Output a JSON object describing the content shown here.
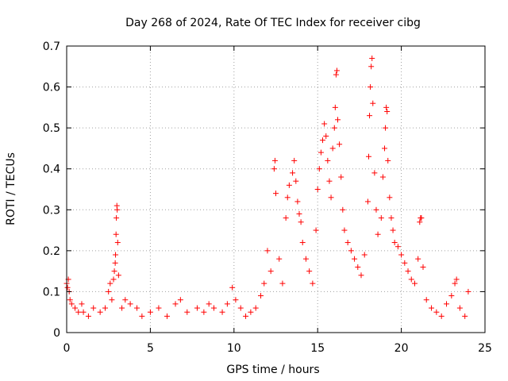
{
  "chart_data": {
    "type": "scatter",
    "title": "Day 268 of 2024, Rate Of TEC Index for receiver cibg",
    "xlabel": "GPS time / hours",
    "ylabel": "ROTI / TECUs",
    "xlim": [
      0,
      25
    ],
    "ylim": [
      0,
      0.7
    ],
    "x_ticks": [
      "0",
      "5",
      "10",
      "15",
      "20",
      "25"
    ],
    "y_ticks": [
      "0",
      "0.1",
      "0.2",
      "0.3",
      "0.4",
      "0.5",
      "0.6",
      "0.7"
    ],
    "grid": true,
    "marker": "+",
    "color": "#ff0000",
    "series": [
      {
        "name": "ROTI",
        "points": [
          [
            0.0,
            0.12
          ],
          [
            0.05,
            0.11
          ],
          [
            0.1,
            0.13
          ],
          [
            0.15,
            0.1
          ],
          [
            0.2,
            0.08
          ],
          [
            0.3,
            0.07
          ],
          [
            0.5,
            0.06
          ],
          [
            0.7,
            0.05
          ],
          [
            0.9,
            0.07
          ],
          [
            1.0,
            0.05
          ],
          [
            1.3,
            0.04
          ],
          [
            1.6,
            0.06
          ],
          [
            2.0,
            0.05
          ],
          [
            2.3,
            0.06
          ],
          [
            2.5,
            0.1
          ],
          [
            2.6,
            0.12
          ],
          [
            2.7,
            0.08
          ],
          [
            2.8,
            0.13
          ],
          [
            2.85,
            0.15
          ],
          [
            2.9,
            0.17
          ],
          [
            2.92,
            0.19
          ],
          [
            2.95,
            0.24
          ],
          [
            2.97,
            0.28
          ],
          [
            3.0,
            0.31
          ],
          [
            3.02,
            0.3
          ],
          [
            3.05,
            0.22
          ],
          [
            3.1,
            0.14
          ],
          [
            3.3,
            0.06
          ],
          [
            3.5,
            0.08
          ],
          [
            3.8,
            0.07
          ],
          [
            4.2,
            0.06
          ],
          [
            4.5,
            0.04
          ],
          [
            5.0,
            0.05
          ],
          [
            5.5,
            0.06
          ],
          [
            6.0,
            0.04
          ],
          [
            6.5,
            0.07
          ],
          [
            6.8,
            0.08
          ],
          [
            7.2,
            0.05
          ],
          [
            7.8,
            0.06
          ],
          [
            8.2,
            0.05
          ],
          [
            8.5,
            0.07
          ],
          [
            8.8,
            0.06
          ],
          [
            9.3,
            0.05
          ],
          [
            9.6,
            0.07
          ],
          [
            9.9,
            0.11
          ],
          [
            10.1,
            0.08
          ],
          [
            10.4,
            0.06
          ],
          [
            10.7,
            0.04
          ],
          [
            11.0,
            0.05
          ],
          [
            11.3,
            0.06
          ],
          [
            11.6,
            0.09
          ],
          [
            11.8,
            0.12
          ],
          [
            12.0,
            0.2
          ],
          [
            12.2,
            0.15
          ],
          [
            12.4,
            0.4
          ],
          [
            12.45,
            0.42
          ],
          [
            12.5,
            0.34
          ],
          [
            12.7,
            0.18
          ],
          [
            12.9,
            0.12
          ],
          [
            13.1,
            0.28
          ],
          [
            13.2,
            0.33
          ],
          [
            13.3,
            0.36
          ],
          [
            13.5,
            0.39
          ],
          [
            13.6,
            0.42
          ],
          [
            13.7,
            0.37
          ],
          [
            13.8,
            0.32
          ],
          [
            13.9,
            0.29
          ],
          [
            14.0,
            0.27
          ],
          [
            14.1,
            0.22
          ],
          [
            14.3,
            0.18
          ],
          [
            14.5,
            0.15
          ],
          [
            14.7,
            0.12
          ],
          [
            14.9,
            0.25
          ],
          [
            15.0,
            0.35
          ],
          [
            15.1,
            0.4
          ],
          [
            15.2,
            0.44
          ],
          [
            15.3,
            0.47
          ],
          [
            15.4,
            0.51
          ],
          [
            15.5,
            0.48
          ],
          [
            15.6,
            0.42
          ],
          [
            15.7,
            0.37
          ],
          [
            15.8,
            0.33
          ],
          [
            15.9,
            0.45
          ],
          [
            16.0,
            0.5
          ],
          [
            16.05,
            0.55
          ],
          [
            16.1,
            0.63
          ],
          [
            16.15,
            0.64
          ],
          [
            16.2,
            0.52
          ],
          [
            16.3,
            0.46
          ],
          [
            16.4,
            0.38
          ],
          [
            16.5,
            0.3
          ],
          [
            16.6,
            0.25
          ],
          [
            16.8,
            0.22
          ],
          [
            17.0,
            0.2
          ],
          [
            17.2,
            0.18
          ],
          [
            17.4,
            0.16
          ],
          [
            17.6,
            0.14
          ],
          [
            17.8,
            0.19
          ],
          [
            18.0,
            0.32
          ],
          [
            18.05,
            0.43
          ],
          [
            18.1,
            0.53
          ],
          [
            18.15,
            0.6
          ],
          [
            18.2,
            0.65
          ],
          [
            18.25,
            0.67
          ],
          [
            18.3,
            0.56
          ],
          [
            18.4,
            0.39
          ],
          [
            18.5,
            0.3
          ],
          [
            18.6,
            0.24
          ],
          [
            18.8,
            0.28
          ],
          [
            18.9,
            0.38
          ],
          [
            19.0,
            0.45
          ],
          [
            19.05,
            0.5
          ],
          [
            19.1,
            0.55
          ],
          [
            19.15,
            0.54
          ],
          [
            19.2,
            0.42
          ],
          [
            19.3,
            0.33
          ],
          [
            19.4,
            0.28
          ],
          [
            19.5,
            0.25
          ],
          [
            19.6,
            0.22
          ],
          [
            19.8,
            0.21
          ],
          [
            20.0,
            0.19
          ],
          [
            20.2,
            0.17
          ],
          [
            20.4,
            0.15
          ],
          [
            20.6,
            0.13
          ],
          [
            20.8,
            0.12
          ],
          [
            21.0,
            0.18
          ],
          [
            21.1,
            0.27
          ],
          [
            21.15,
            0.28
          ],
          [
            21.2,
            0.28
          ],
          [
            21.3,
            0.16
          ],
          [
            21.5,
            0.08
          ],
          [
            21.8,
            0.06
          ],
          [
            22.1,
            0.05
          ],
          [
            22.4,
            0.04
          ],
          [
            22.7,
            0.07
          ],
          [
            23.0,
            0.09
          ],
          [
            23.2,
            0.12
          ],
          [
            23.3,
            0.13
          ],
          [
            23.5,
            0.06
          ],
          [
            23.8,
            0.04
          ],
          [
            24.0,
            0.1
          ]
        ]
      }
    ]
  }
}
